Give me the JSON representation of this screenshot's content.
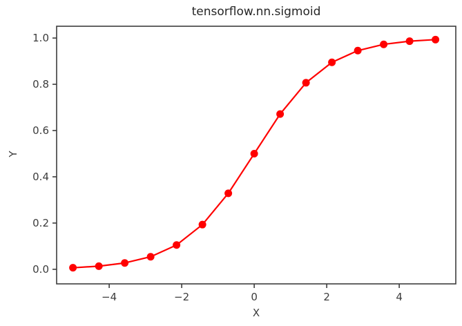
{
  "chart_data": {
    "type": "line",
    "title": "tensorflow.nn.sigmoid",
    "xlabel": "X",
    "ylabel": "Y",
    "x": [
      -5,
      -4.2857,
      -3.5714,
      -2.8571,
      -2.1429,
      -1.4286,
      -0.7143,
      0,
      0.7143,
      1.4286,
      2.1429,
      2.8571,
      3.5714,
      4.2857,
      5
    ],
    "y": [
      0.0067,
      0.0136,
      0.0274,
      0.0543,
      0.105,
      0.1933,
      0.3287,
      0.5,
      0.6713,
      0.8067,
      0.895,
      0.9457,
      0.9727,
      0.9864,
      0.9933
    ],
    "x_ticks": [
      -4,
      -2,
      0,
      2,
      4
    ],
    "x_tick_labels": [
      "−4",
      "−2",
      "0",
      "2",
      "4"
    ],
    "y_ticks": [
      0.0,
      0.2,
      0.4,
      0.6,
      0.8,
      1.0
    ],
    "y_tick_labels": [
      "0.0",
      "0.2",
      "0.4",
      "0.6",
      "0.8",
      "1.0"
    ],
    "xlim": [
      -5.45,
      5.56
    ],
    "ylim": [
      -0.063,
      1.051
    ],
    "line_color": "#ff0000",
    "marker": "o",
    "marker_radius": 5.5,
    "line_width": 2.2,
    "spine_color": "#3c3c3c",
    "grid": false,
    "legend_position": "none",
    "background_color": "#ffffff"
  }
}
